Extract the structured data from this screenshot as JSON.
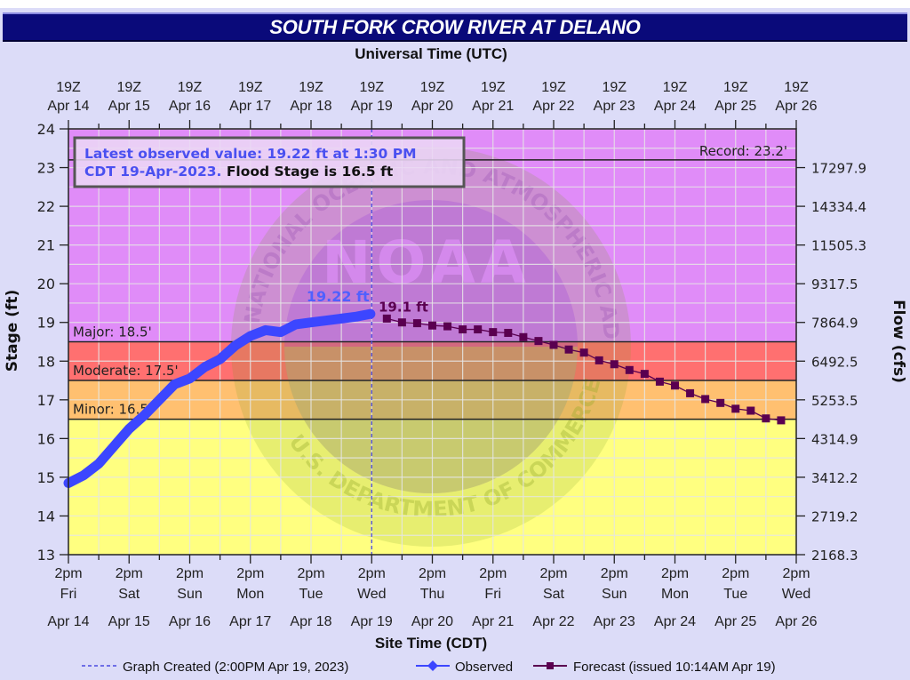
{
  "title": "SOUTH FORK CROW RIVER AT DELANO",
  "top_axis": {
    "label": "Universal Time (UTC)",
    "ticks": [
      {
        "time": "19Z",
        "date": "Apr 14"
      },
      {
        "time": "19Z",
        "date": "Apr 15"
      },
      {
        "time": "19Z",
        "date": "Apr 16"
      },
      {
        "time": "19Z",
        "date": "Apr 17"
      },
      {
        "time": "19Z",
        "date": "Apr 18"
      },
      {
        "time": "19Z",
        "date": "Apr 19"
      },
      {
        "time": "19Z",
        "date": "Apr 20"
      },
      {
        "time": "19Z",
        "date": "Apr 21"
      },
      {
        "time": "19Z",
        "date": "Apr 22"
      },
      {
        "time": "19Z",
        "date": "Apr 23"
      },
      {
        "time": "19Z",
        "date": "Apr 24"
      },
      {
        "time": "19Z",
        "date": "Apr 25"
      },
      {
        "time": "19Z",
        "date": "Apr 26"
      }
    ]
  },
  "bottom_axis": {
    "label": "Site Time (CDT)",
    "ticks": [
      {
        "time": "2pm",
        "day": "Fri",
        "date": "Apr 14"
      },
      {
        "time": "2pm",
        "day": "Sat",
        "date": "Apr 15"
      },
      {
        "time": "2pm",
        "day": "Sun",
        "date": "Apr 16"
      },
      {
        "time": "2pm",
        "day": "Mon",
        "date": "Apr 17"
      },
      {
        "time": "2pm",
        "day": "Tue",
        "date": "Apr 18"
      },
      {
        "time": "2pm",
        "day": "Wed",
        "date": "Apr 19"
      },
      {
        "time": "2pm",
        "day": "Thu",
        "date": "Apr 20"
      },
      {
        "time": "2pm",
        "day": "Fri",
        "date": "Apr 21"
      },
      {
        "time": "2pm",
        "day": "Sat",
        "date": "Apr 22"
      },
      {
        "time": "2pm",
        "day": "Sun",
        "date": "Apr 23"
      },
      {
        "time": "2pm",
        "day": "Mon",
        "date": "Apr 24"
      },
      {
        "time": "2pm",
        "day": "Tue",
        "date": "Apr 25"
      },
      {
        "time": "2pm",
        "day": "Wed",
        "date": "Apr 26"
      }
    ]
  },
  "left_axis": {
    "label": "Stage (ft)",
    "ticks": [
      "13",
      "14",
      "15",
      "16",
      "17",
      "18",
      "19",
      "20",
      "21",
      "22",
      "23",
      "24"
    ],
    "min": 13,
    "max": 24
  },
  "right_axis": {
    "label": "Flow (cfs)",
    "ticks": [
      {
        "stage": 13,
        "label": "2168.3"
      },
      {
        "stage": 14,
        "label": "2719.2"
      },
      {
        "stage": 15,
        "label": "3412.2"
      },
      {
        "stage": 16,
        "label": "4314.9"
      },
      {
        "stage": 17,
        "label": "5253.5"
      },
      {
        "stage": 18,
        "label": "6492.5"
      },
      {
        "stage": 19,
        "label": "7864.9"
      },
      {
        "stage": 20,
        "label": "9317.5"
      },
      {
        "stage": 21,
        "label": "11505.3"
      },
      {
        "stage": 22,
        "label": "14334.4"
      },
      {
        "stage": 23,
        "label": "17297.9"
      }
    ]
  },
  "info_box": {
    "line1": "Latest observed value: 19.22 ft at 1:30 PM",
    "line2_blue": "CDT 19-Apr-2023.",
    "line2_black": "Flood Stage is 16.5 ft"
  },
  "thresholds": {
    "record": {
      "label": "Record: 23.2'",
      "value": 23.2
    },
    "major": {
      "label": "Major: 18.5'",
      "value": 18.5,
      "color": "#ff7070"
    },
    "moderate": {
      "label": "Moderate: 17.5'",
      "value": 17.5,
      "color": "#ffc070"
    },
    "minor": {
      "label": "Minor: 16.5'",
      "value": 16.5,
      "color": "#ffff80"
    },
    "above_major_color": "#e08cf8"
  },
  "annotations": {
    "observed_last": "19.22 ft",
    "forecast_first": "19.1 ft"
  },
  "watermark": {
    "center": "NOAA",
    "top_arc": "NATIONAL OCEANIC AND ATMOSPHERIC ADMINISTRATION",
    "bottom_arc": "U.S. DEPARTMENT OF COMMERCE"
  },
  "legend": {
    "graph_created": "Graph Created (2:00PM Apr 19, 2023)",
    "observed": "Observed",
    "forecast": "Forecast (issued 10:14AM Apr 19)"
  },
  "colors": {
    "observed": "#3c46ff",
    "forecast": "#5a0050",
    "title_bg": "#0a0a7a",
    "background": "#dcdcf8",
    "created_line": "#4a4ae0"
  },
  "chart_data": {
    "type": "line",
    "title": "SOUTH FORK CROW RIVER AT DELANO",
    "xlabel": "Site Time (CDT)",
    "xlabel_top": "Universal Time (UTC)",
    "ylabel": "Stage (ft)",
    "ylabel_right": "Flow (cfs)",
    "ylim": [
      13,
      24
    ],
    "xlim": [
      "Apr 14 2pm",
      "Apr 26 2pm"
    ],
    "grid": true,
    "legend_position": "bottom",
    "x_units": "days since Apr 14 2pm CDT",
    "series": [
      {
        "name": "Observed",
        "x": [
          0.0,
          0.25,
          0.5,
          0.75,
          1.0,
          1.25,
          1.5,
          1.75,
          2.0,
          2.25,
          2.5,
          2.75,
          3.0,
          3.25,
          3.5,
          3.75,
          4.0,
          4.25,
          4.5,
          4.75,
          4.98
        ],
        "values": [
          14.85,
          15.05,
          15.35,
          15.8,
          16.25,
          16.6,
          17.0,
          17.4,
          17.55,
          17.85,
          18.05,
          18.4,
          18.65,
          18.8,
          18.75,
          18.95,
          19.0,
          19.05,
          19.1,
          19.15,
          19.22
        ]
      },
      {
        "name": "Forecast (issued 10:14AM Apr 19)",
        "x": [
          5.25,
          5.5,
          5.75,
          6.0,
          6.25,
          6.5,
          6.75,
          7.0,
          7.25,
          7.5,
          7.75,
          8.0,
          8.25,
          8.5,
          8.75,
          9.0,
          9.25,
          9.5,
          9.75,
          10.0,
          10.25,
          10.5,
          10.75,
          11.0,
          11.25,
          11.5,
          11.75
        ],
        "values": [
          19.1,
          19.0,
          18.98,
          18.92,
          18.9,
          18.82,
          18.82,
          18.75,
          18.73,
          18.62,
          18.52,
          18.42,
          18.3,
          18.22,
          18.02,
          17.92,
          17.77,
          17.67,
          17.47,
          17.37,
          17.17,
          17.02,
          16.92,
          16.77,
          16.72,
          16.52,
          16.47
        ]
      }
    ],
    "flood_categories": {
      "record": 23.2,
      "major": 18.5,
      "moderate": 17.5,
      "minor": 16.5,
      "flood_stage": 16.5
    },
    "annotations": [
      "19.22 ft",
      "19.1 ft",
      "Latest observed value: 19.22 ft at 1:30 PM CDT 19-Apr-2023. Flood Stage is 16.5 ft"
    ],
    "graph_created_x": 5.0
  }
}
